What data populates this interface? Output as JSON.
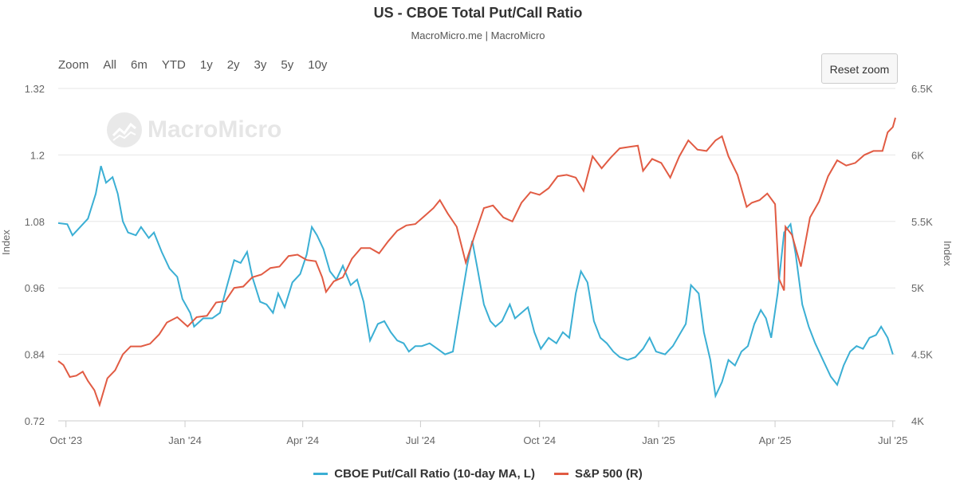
{
  "title": "US - CBOE Total Put/Call Ratio",
  "subtitle": "MacroMicro.me | MacroMicro",
  "watermark": "MacroMicro",
  "range_selector": {
    "label": "Zoom",
    "buttons": [
      "All",
      "6m",
      "YTD",
      "1y",
      "2y",
      "3y",
      "5y",
      "10y"
    ]
  },
  "reset_zoom_label": "Reset zoom",
  "colors": {
    "putcall": "#3bafd4",
    "sp500": "#e15b43",
    "grid": "#e6e6e6"
  },
  "chart_data": {
    "type": "line",
    "title": "US - CBOE Total Put/Call Ratio",
    "x_axis": {
      "type": "date",
      "range": [
        "2023-09-25",
        "2025-07-03"
      ],
      "ticks": [
        {
          "date": "2023-10-01",
          "label": "Oct '23"
        },
        {
          "date": "2024-01-01",
          "label": "Jan '24"
        },
        {
          "date": "2024-04-01",
          "label": "Apr '24"
        },
        {
          "date": "2024-07-01",
          "label": "Jul '24"
        },
        {
          "date": "2024-10-01",
          "label": "Oct '24"
        },
        {
          "date": "2025-01-01",
          "label": "Jan '25"
        },
        {
          "date": "2025-04-01",
          "label": "Apr '25"
        },
        {
          "date": "2025-07-01",
          "label": "Jul '25"
        }
      ]
    },
    "y_left": {
      "label": "Index",
      "range": [
        0.72,
        1.32
      ],
      "ticks": [
        0.72,
        0.84,
        0.96,
        1.08,
        1.2,
        1.32
      ],
      "tick_labels": [
        "0.72",
        "0.84",
        "0.96",
        "1.08",
        "1.2",
        "1.32"
      ]
    },
    "y_right": {
      "label": "Index",
      "range": [
        4000,
        6500
      ],
      "ticks": [
        4000,
        4500,
        5000,
        5500,
        6000,
        6500
      ],
      "tick_labels": [
        "4K",
        "4.5K",
        "5K",
        "5.5K",
        "6K",
        "6.5K"
      ]
    },
    "grid": true,
    "legend_position": "bottom-center",
    "series": [
      {
        "name": "CBOE Put/Call Ratio (10-day MA, L)",
        "axis": "left",
        "points": [
          [
            "2023-09-25",
            1.077
          ],
          [
            "2023-10-02",
            1.075
          ],
          [
            "2023-10-06",
            1.055
          ],
          [
            "2023-10-12",
            1.07
          ],
          [
            "2023-10-18",
            1.085
          ],
          [
            "2023-10-24",
            1.13
          ],
          [
            "2023-10-28",
            1.18
          ],
          [
            "2023-11-01",
            1.15
          ],
          [
            "2023-11-06",
            1.16
          ],
          [
            "2023-11-10",
            1.13
          ],
          [
            "2023-11-14",
            1.08
          ],
          [
            "2023-11-18",
            1.06
          ],
          [
            "2023-11-24",
            1.055
          ],
          [
            "2023-11-28",
            1.07
          ],
          [
            "2023-12-04",
            1.05
          ],
          [
            "2023-12-08",
            1.06
          ],
          [
            "2023-12-14",
            1.025
          ],
          [
            "2023-12-20",
            0.995
          ],
          [
            "2023-12-26",
            0.98
          ],
          [
            "2023-12-30",
            0.94
          ],
          [
            "2024-01-05",
            0.915
          ],
          [
            "2024-01-08",
            0.89
          ],
          [
            "2024-01-15",
            0.905
          ],
          [
            "2024-01-22",
            0.905
          ],
          [
            "2024-01-28",
            0.915
          ],
          [
            "2024-02-02",
            0.96
          ],
          [
            "2024-02-08",
            1.01
          ],
          [
            "2024-02-13",
            1.005
          ],
          [
            "2024-02-18",
            1.025
          ],
          [
            "2024-02-22",
            0.98
          ],
          [
            "2024-02-28",
            0.935
          ],
          [
            "2024-03-04",
            0.93
          ],
          [
            "2024-03-09",
            0.915
          ],
          [
            "2024-03-13",
            0.95
          ],
          [
            "2024-03-18",
            0.925
          ],
          [
            "2024-03-24",
            0.97
          ],
          [
            "2024-03-30",
            0.985
          ],
          [
            "2024-04-04",
            1.02
          ],
          [
            "2024-04-08",
            1.07
          ],
          [
            "2024-04-12",
            1.055
          ],
          [
            "2024-04-17",
            1.03
          ],
          [
            "2024-04-22",
            0.99
          ],
          [
            "2024-04-27",
            0.975
          ],
          [
            "2024-05-02",
            1.0
          ],
          [
            "2024-05-08",
            0.965
          ],
          [
            "2024-05-13",
            0.975
          ],
          [
            "2024-05-18",
            0.935
          ],
          [
            "2024-05-23",
            0.865
          ],
          [
            "2024-05-29",
            0.895
          ],
          [
            "2024-06-03",
            0.9
          ],
          [
            "2024-06-08",
            0.88
          ],
          [
            "2024-06-13",
            0.865
          ],
          [
            "2024-06-18",
            0.86
          ],
          [
            "2024-06-22",
            0.845
          ],
          [
            "2024-06-27",
            0.855
          ],
          [
            "2024-07-02",
            0.855
          ],
          [
            "2024-07-08",
            0.86
          ],
          [
            "2024-07-14",
            0.85
          ],
          [
            "2024-07-20",
            0.84
          ],
          [
            "2024-07-26",
            0.845
          ],
          [
            "2024-08-01",
            0.93
          ],
          [
            "2024-08-06",
            1.0
          ],
          [
            "2024-08-10",
            1.045
          ],
          [
            "2024-08-14",
            0.995
          ],
          [
            "2024-08-19",
            0.93
          ],
          [
            "2024-08-24",
            0.9
          ],
          [
            "2024-08-28",
            0.89
          ],
          [
            "2024-09-02",
            0.9
          ],
          [
            "2024-09-08",
            0.93
          ],
          [
            "2024-09-12",
            0.905
          ],
          [
            "2024-09-17",
            0.915
          ],
          [
            "2024-09-22",
            0.925
          ],
          [
            "2024-09-27",
            0.88
          ],
          [
            "2024-10-02",
            0.85
          ],
          [
            "2024-10-08",
            0.87
          ],
          [
            "2024-10-14",
            0.86
          ],
          [
            "2024-10-19",
            0.88
          ],
          [
            "2024-10-24",
            0.87
          ],
          [
            "2024-10-29",
            0.95
          ],
          [
            "2024-11-02",
            0.99
          ],
          [
            "2024-11-07",
            0.97
          ],
          [
            "2024-11-12",
            0.9
          ],
          [
            "2024-11-17",
            0.87
          ],
          [
            "2024-11-22",
            0.86
          ],
          [
            "2024-11-27",
            0.845
          ],
          [
            "2024-12-02",
            0.835
          ],
          [
            "2024-12-08",
            0.83
          ],
          [
            "2024-12-14",
            0.835
          ],
          [
            "2024-12-20",
            0.85
          ],
          [
            "2024-12-25",
            0.87
          ],
          [
            "2024-12-30",
            0.845
          ],
          [
            "2025-01-06",
            0.84
          ],
          [
            "2025-01-12",
            0.855
          ],
          [
            "2025-01-17",
            0.875
          ],
          [
            "2025-01-22",
            0.895
          ],
          [
            "2025-01-26",
            0.965
          ],
          [
            "2025-02-01",
            0.95
          ],
          [
            "2025-02-05",
            0.88
          ],
          [
            "2025-02-10",
            0.83
          ],
          [
            "2025-02-14",
            0.765
          ],
          [
            "2025-02-19",
            0.79
          ],
          [
            "2025-02-24",
            0.83
          ],
          [
            "2025-03-01",
            0.82
          ],
          [
            "2025-03-06",
            0.845
          ],
          [
            "2025-03-11",
            0.855
          ],
          [
            "2025-03-16",
            0.895
          ],
          [
            "2025-03-21",
            0.92
          ],
          [
            "2025-03-25",
            0.905
          ],
          [
            "2025-03-29",
            0.87
          ],
          [
            "2025-04-03",
            0.95
          ],
          [
            "2025-04-08",
            1.06
          ],
          [
            "2025-04-13",
            1.075
          ],
          [
            "2025-04-17",
            1.02
          ],
          [
            "2025-04-22",
            0.93
          ],
          [
            "2025-04-27",
            0.89
          ],
          [
            "2025-05-02",
            0.86
          ],
          [
            "2025-05-08",
            0.83
          ],
          [
            "2025-05-14",
            0.8
          ],
          [
            "2025-05-19",
            0.785
          ],
          [
            "2025-05-24",
            0.82
          ],
          [
            "2025-05-29",
            0.845
          ],
          [
            "2025-06-03",
            0.855
          ],
          [
            "2025-06-08",
            0.85
          ],
          [
            "2025-06-13",
            0.87
          ],
          [
            "2025-06-18",
            0.875
          ],
          [
            "2025-06-22",
            0.89
          ],
          [
            "2025-06-27",
            0.87
          ],
          [
            "2025-07-01",
            0.84
          ]
        ]
      },
      {
        "name": "S&P 500 (R)",
        "axis": "right",
        "points": [
          [
            "2023-09-25",
            4450
          ],
          [
            "2023-09-29",
            4420
          ],
          [
            "2023-10-04",
            4330
          ],
          [
            "2023-10-09",
            4340
          ],
          [
            "2023-10-14",
            4370
          ],
          [
            "2023-10-18",
            4300
          ],
          [
            "2023-10-23",
            4230
          ],
          [
            "2023-10-27",
            4120
          ],
          [
            "2023-11-02",
            4320
          ],
          [
            "2023-11-08",
            4380
          ],
          [
            "2023-11-14",
            4500
          ],
          [
            "2023-11-20",
            4560
          ],
          [
            "2023-11-28",
            4560
          ],
          [
            "2023-12-05",
            4580
          ],
          [
            "2023-12-12",
            4650
          ],
          [
            "2023-12-18",
            4740
          ],
          [
            "2023-12-26",
            4780
          ],
          [
            "2024-01-03",
            4710
          ],
          [
            "2024-01-10",
            4780
          ],
          [
            "2024-01-18",
            4790
          ],
          [
            "2024-01-25",
            4890
          ],
          [
            "2024-02-01",
            4900
          ],
          [
            "2024-02-08",
            5000
          ],
          [
            "2024-02-15",
            5010
          ],
          [
            "2024-02-22",
            5080
          ],
          [
            "2024-02-29",
            5100
          ],
          [
            "2024-03-07",
            5150
          ],
          [
            "2024-03-14",
            5160
          ],
          [
            "2024-03-21",
            5240
          ],
          [
            "2024-03-28",
            5250
          ],
          [
            "2024-04-04",
            5210
          ],
          [
            "2024-04-11",
            5200
          ],
          [
            "2024-04-16",
            5080
          ],
          [
            "2024-04-19",
            4970
          ],
          [
            "2024-04-25",
            5050
          ],
          [
            "2024-05-02",
            5080
          ],
          [
            "2024-05-09",
            5220
          ],
          [
            "2024-05-16",
            5300
          ],
          [
            "2024-05-23",
            5300
          ],
          [
            "2024-05-30",
            5260
          ],
          [
            "2024-06-06",
            5350
          ],
          [
            "2024-06-13",
            5430
          ],
          [
            "2024-06-20",
            5470
          ],
          [
            "2024-06-27",
            5480
          ],
          [
            "2024-07-04",
            5540
          ],
          [
            "2024-07-11",
            5600
          ],
          [
            "2024-07-16",
            5660
          ],
          [
            "2024-07-22",
            5560
          ],
          [
            "2024-07-29",
            5460
          ],
          [
            "2024-08-05",
            5190
          ],
          [
            "2024-08-12",
            5400
          ],
          [
            "2024-08-19",
            5600
          ],
          [
            "2024-08-26",
            5620
          ],
          [
            "2024-09-03",
            5530
          ],
          [
            "2024-09-10",
            5500
          ],
          [
            "2024-09-17",
            5640
          ],
          [
            "2024-09-24",
            5720
          ],
          [
            "2024-10-01",
            5700
          ],
          [
            "2024-10-08",
            5750
          ],
          [
            "2024-10-15",
            5840
          ],
          [
            "2024-10-22",
            5850
          ],
          [
            "2024-10-29",
            5830
          ],
          [
            "2024-11-04",
            5730
          ],
          [
            "2024-11-11",
            5990
          ],
          [
            "2024-11-18",
            5900
          ],
          [
            "2024-11-25",
            5980
          ],
          [
            "2024-12-02",
            6050
          ],
          [
            "2024-12-09",
            6060
          ],
          [
            "2024-12-16",
            6070
          ],
          [
            "2024-12-20",
            5880
          ],
          [
            "2024-12-27",
            5970
          ],
          [
            "2025-01-03",
            5940
          ],
          [
            "2025-01-10",
            5830
          ],
          [
            "2025-01-17",
            5990
          ],
          [
            "2025-01-24",
            6110
          ],
          [
            "2025-01-31",
            6040
          ],
          [
            "2025-02-07",
            6030
          ],
          [
            "2025-02-14",
            6110
          ],
          [
            "2025-02-19",
            6140
          ],
          [
            "2025-02-24",
            5990
          ],
          [
            "2025-03-03",
            5850
          ],
          [
            "2025-03-10",
            5610
          ],
          [
            "2025-03-14",
            5640
          ],
          [
            "2025-03-20",
            5660
          ],
          [
            "2025-03-26",
            5710
          ],
          [
            "2025-04-01",
            5630
          ],
          [
            "2025-04-04",
            5070
          ],
          [
            "2025-04-08",
            4980
          ],
          [
            "2025-04-09",
            5460
          ],
          [
            "2025-04-14",
            5400
          ],
          [
            "2025-04-21",
            5160
          ],
          [
            "2025-04-28",
            5530
          ],
          [
            "2025-05-05",
            5650
          ],
          [
            "2025-05-12",
            5840
          ],
          [
            "2025-05-19",
            5960
          ],
          [
            "2025-05-26",
            5920
          ],
          [
            "2025-06-02",
            5940
          ],
          [
            "2025-06-09",
            6000
          ],
          [
            "2025-06-16",
            6030
          ],
          [
            "2025-06-23",
            6030
          ],
          [
            "2025-06-27",
            6170
          ],
          [
            "2025-07-01",
            6210
          ],
          [
            "2025-07-03",
            6280
          ]
        ]
      }
    ]
  }
}
